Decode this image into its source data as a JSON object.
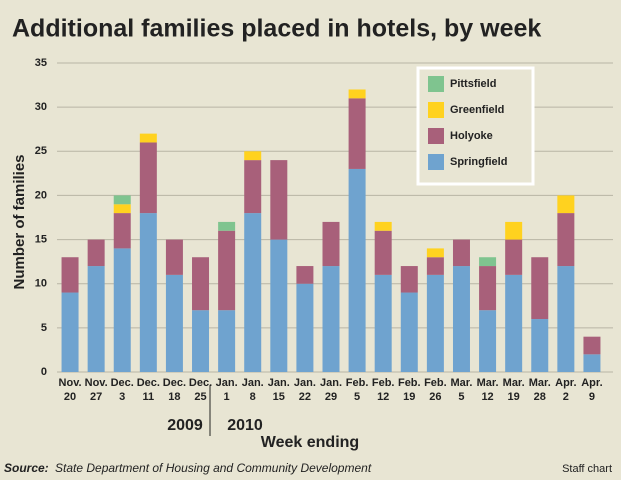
{
  "chart_data": {
    "type": "stacked_bar",
    "title": "Additional families placed in hotels, by week",
    "y_label": "Number of families",
    "x_label": "Week ending",
    "year_labels": [
      "2009",
      "2010"
    ],
    "source_label": "Source:",
    "source": "State Department of Housing and Community Development",
    "credit": "Staff chart",
    "categories": [
      "Nov. 20",
      "Nov. 27",
      "Dec. 3",
      "Dec. 11",
      "Dec. 18",
      "Dec. 25",
      "Jan. 1",
      "Jan. 8",
      "Jan. 15",
      "Jan. 22",
      "Jan. 29",
      "Feb. 5",
      "Feb. 12",
      "Feb. 19",
      "Feb. 26",
      "Mar. 5",
      "Mar. 12",
      "Mar. 19",
      "Mar. 28",
      "Apr. 2",
      "Apr. 9"
    ],
    "series": [
      {
        "name": "Springfield",
        "color": "#6fa3cf",
        "values": [
          9,
          12,
          14,
          18,
          11,
          7,
          7,
          18,
          15,
          10,
          12,
          23,
          11,
          9,
          11,
          12,
          7,
          11,
          6,
          12,
          2
        ]
      },
      {
        "name": "Holyoke",
        "color": "#a8607a",
        "values": [
          4,
          3,
          4,
          8,
          4,
          6,
          9,
          6,
          9,
          2,
          5,
          8,
          5,
          3,
          2,
          3,
          5,
          4,
          7,
          6,
          2
        ]
      },
      {
        "name": "Greenfield",
        "color": "#ffd21f",
        "values": [
          0,
          0,
          1,
          1,
          0,
          0,
          0,
          1,
          0,
          0,
          0,
          1,
          1,
          0,
          1,
          0,
          0,
          2,
          0,
          2,
          0
        ]
      },
      {
        "name": "Pittsfield",
        "color": "#7fc48f",
        "values": [
          0,
          0,
          1,
          0,
          0,
          0,
          1,
          0,
          0,
          0,
          0,
          0,
          0,
          0,
          0,
          0,
          1,
          0,
          0,
          0,
          0
        ]
      }
    ],
    "ylim": [
      0,
      35
    ],
    "yticks": [
      0,
      5,
      10,
      15,
      20,
      25,
      30,
      35
    ],
    "grid": true
  }
}
